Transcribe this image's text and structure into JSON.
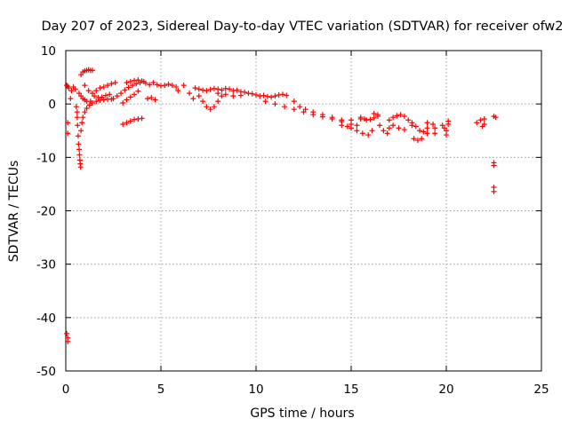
{
  "chart_data": {
    "type": "scatter",
    "title": "Day 207 of 2023, Sidereal Day-to-day VTEC variation (SDTVAR) for receiver ofw2",
    "xlabel": "GPS time / hours",
    "ylabel": "SDTVAR / TECUs",
    "xlim": [
      0,
      25
    ],
    "ylim": [
      -50,
      10
    ],
    "xticks": [
      0,
      5,
      10,
      15,
      20,
      25
    ],
    "yticks": [
      -50,
      -40,
      -30,
      -20,
      -10,
      0,
      10
    ],
    "grid": true,
    "marker": "+",
    "colors": {
      "series": "#ff0000",
      "grid": "#a0a0a0",
      "axes": "#000000"
    },
    "series": [
      {
        "name": "SDTVAR",
        "points": [
          [
            0.05,
            3.5
          ],
          [
            0.1,
            3.3
          ],
          [
            0.15,
            3.0
          ],
          [
            0.1,
            -3.5
          ],
          [
            0.1,
            -5.5
          ],
          [
            0.05,
            -43.0
          ],
          [
            0.1,
            -43.8
          ],
          [
            0.1,
            -44.5
          ],
          [
            0.25,
            1.0
          ],
          [
            0.3,
            2.5
          ],
          [
            0.4,
            3.2
          ],
          [
            0.5,
            2.8
          ],
          [
            0.55,
            -0.5
          ],
          [
            0.6,
            -1.5
          ],
          [
            0.6,
            -2.5
          ],
          [
            0.62,
            -4.0
          ],
          [
            0.65,
            -6.0
          ],
          [
            0.67,
            -7.5
          ],
          [
            0.7,
            -8.5
          ],
          [
            0.72,
            -9.5
          ],
          [
            0.74,
            -10.5
          ],
          [
            0.76,
            -11.2
          ],
          [
            0.78,
            -11.8
          ],
          [
            0.8,
            -5.0
          ],
          [
            0.85,
            -3.5
          ],
          [
            0.9,
            -2.5
          ],
          [
            1.0,
            -1.5
          ],
          [
            1.1,
            -0.8
          ],
          [
            1.25,
            -0.2
          ],
          [
            1.4,
            0.2
          ],
          [
            1.6,
            0.5
          ],
          [
            1.8,
            0.7
          ],
          [
            2.0,
            0.8
          ],
          [
            2.2,
            0.9
          ],
          [
            2.4,
            0.9
          ],
          [
            0.7,
            2.0
          ],
          [
            0.8,
            1.5
          ],
          [
            0.9,
            1.0
          ],
          [
            1.0,
            0.8
          ],
          [
            1.1,
            0.5
          ],
          [
            1.3,
            0.5
          ],
          [
            0.8,
            5.5
          ],
          [
            0.9,
            6.0
          ],
          [
            1.0,
            6.2
          ],
          [
            1.1,
            6.3
          ],
          [
            1.2,
            6.4
          ],
          [
            1.3,
            6.3
          ],
          [
            1.4,
            6.3
          ],
          [
            1.0,
            3.5
          ],
          [
            1.2,
            2.5
          ],
          [
            1.4,
            2.0
          ],
          [
            1.6,
            2.5
          ],
          [
            1.8,
            3.0
          ],
          [
            2.0,
            3.2
          ],
          [
            2.2,
            3.5
          ],
          [
            2.4,
            3.8
          ],
          [
            2.6,
            4.0
          ],
          [
            1.5,
            1.5
          ],
          [
            1.7,
            1.2
          ],
          [
            1.9,
            1.3
          ],
          [
            2.1,
            1.6
          ],
          [
            2.3,
            1.8
          ],
          [
            2.5,
            1.0
          ],
          [
            2.7,
            1.5
          ],
          [
            2.9,
            2.0
          ],
          [
            3.1,
            2.6
          ],
          [
            3.3,
            3.1
          ],
          [
            3.5,
            3.5
          ],
          [
            3.7,
            3.8
          ],
          [
            3.9,
            4.0
          ],
          [
            4.1,
            4.2
          ],
          [
            3.0,
            0.2
          ],
          [
            3.2,
            0.8
          ],
          [
            3.4,
            1.3
          ],
          [
            3.6,
            1.8
          ],
          [
            3.8,
            2.4
          ],
          [
            3.2,
            4.0
          ],
          [
            3.4,
            4.2
          ],
          [
            3.6,
            4.4
          ],
          [
            3.8,
            4.5
          ],
          [
            4.0,
            4.3
          ],
          [
            4.2,
            3.9
          ],
          [
            4.4,
            3.6
          ],
          [
            3.0,
            -3.8
          ],
          [
            3.2,
            -3.5
          ],
          [
            3.4,
            -3.2
          ],
          [
            3.6,
            -2.9
          ],
          [
            3.8,
            -2.8
          ],
          [
            4.0,
            -2.7
          ],
          [
            4.3,
            1.0
          ],
          [
            4.5,
            1.2
          ],
          [
            4.7,
            0.8
          ],
          [
            4.6,
            4.0
          ],
          [
            4.8,
            3.6
          ],
          [
            5.0,
            3.4
          ],
          [
            5.2,
            3.5
          ],
          [
            5.4,
            3.7
          ],
          [
            5.6,
            3.5
          ],
          [
            5.8,
            3.2
          ],
          [
            5.9,
            2.5
          ],
          [
            6.2,
            3.5
          ],
          [
            6.5,
            2.0
          ],
          [
            6.7,
            1.0
          ],
          [
            6.8,
            3.0
          ],
          [
            7.0,
            2.8
          ],
          [
            7.2,
            2.6
          ],
          [
            7.4,
            2.5
          ],
          [
            7.6,
            2.7
          ],
          [
            7.8,
            2.9
          ],
          [
            8.0,
            2.8
          ],
          [
            8.2,
            2.6
          ],
          [
            8.4,
            2.9
          ],
          [
            8.6,
            2.8
          ],
          [
            8.8,
            2.5
          ],
          [
            9.0,
            2.6
          ],
          [
            9.2,
            2.3
          ],
          [
            9.4,
            2.2
          ],
          [
            9.6,
            2.0
          ],
          [
            9.8,
            1.9
          ],
          [
            10.0,
            1.7
          ],
          [
            10.2,
            1.5
          ],
          [
            10.4,
            1.6
          ],
          [
            10.6,
            1.4
          ],
          [
            10.8,
            1.3
          ],
          [
            11.0,
            1.5
          ],
          [
            11.2,
            1.7
          ],
          [
            11.4,
            1.8
          ],
          [
            11.6,
            1.6
          ],
          [
            7.0,
            1.5
          ],
          [
            7.2,
            0.5
          ],
          [
            7.4,
            -0.5
          ],
          [
            7.6,
            -1.0
          ],
          [
            7.8,
            -0.5
          ],
          [
            8.0,
            0.5
          ],
          [
            8.2,
            1.5
          ],
          [
            8.0,
            2.0
          ],
          [
            8.4,
            1.8
          ],
          [
            8.8,
            1.5
          ],
          [
            9.2,
            1.6
          ],
          [
            10.5,
            0.5
          ],
          [
            11.0,
            0.0
          ],
          [
            11.5,
            -0.5
          ],
          [
            12.0,
            -1.0
          ],
          [
            12.5,
            -1.5
          ],
          [
            13.0,
            -2.0
          ],
          [
            13.5,
            -2.4
          ],
          [
            14.0,
            -2.8
          ],
          [
            14.5,
            -3.0
          ],
          [
            15.0,
            -3.0
          ],
          [
            15.5,
            -2.8
          ],
          [
            15.8,
            -3.0
          ],
          [
            12.0,
            0.5
          ],
          [
            12.3,
            -0.5
          ],
          [
            12.6,
            -1.0
          ],
          [
            13.0,
            -1.5
          ],
          [
            13.5,
            -2.0
          ],
          [
            14.0,
            -2.5
          ],
          [
            14.5,
            -3.3
          ],
          [
            15.0,
            -3.8
          ],
          [
            15.3,
            -4.0
          ],
          [
            14.5,
            -4.0
          ],
          [
            14.8,
            -4.2
          ],
          [
            15.0,
            -4.5
          ],
          [
            15.3,
            -5.0
          ],
          [
            15.6,
            -5.5
          ],
          [
            15.9,
            -5.8
          ],
          [
            16.1,
            -5.0
          ],
          [
            15.5,
            -2.5
          ],
          [
            15.7,
            -2.8
          ],
          [
            16.0,
            -2.9
          ],
          [
            16.2,
            -2.6
          ],
          [
            16.4,
            -2.3
          ],
          [
            16.5,
            -4.0
          ],
          [
            16.7,
            -5.0
          ],
          [
            16.9,
            -5.5
          ],
          [
            17.0,
            -4.5
          ],
          [
            17.0,
            -3.0
          ],
          [
            17.2,
            -2.5
          ],
          [
            17.4,
            -2.2
          ],
          [
            17.6,
            -2.0
          ],
          [
            17.8,
            -2.3
          ],
          [
            18.0,
            -3.0
          ],
          [
            18.2,
            -3.5
          ],
          [
            16.2,
            -1.8
          ],
          [
            16.4,
            -2.0
          ],
          [
            17.2,
            -4.0
          ],
          [
            17.5,
            -4.5
          ],
          [
            17.8,
            -4.8
          ],
          [
            18.3,
            -6.5
          ],
          [
            18.5,
            -6.8
          ],
          [
            18.7,
            -6.5
          ],
          [
            18.2,
            -4.0
          ],
          [
            18.4,
            -4.2
          ],
          [
            18.6,
            -5.0
          ],
          [
            18.8,
            -5.2
          ],
          [
            19.0,
            -3.5
          ],
          [
            19.0,
            -4.5
          ],
          [
            19.0,
            -5.5
          ],
          [
            19.3,
            -3.8
          ],
          [
            19.4,
            -4.5
          ],
          [
            19.4,
            -5.5
          ],
          [
            19.8,
            -4.0
          ],
          [
            19.9,
            -4.5
          ],
          [
            20.0,
            -5.0
          ],
          [
            20.0,
            -5.8
          ],
          [
            20.1,
            -3.2
          ],
          [
            20.1,
            -3.8
          ],
          [
            21.6,
            -3.5
          ],
          [
            21.8,
            -3.0
          ],
          [
            21.9,
            -4.2
          ],
          [
            22.0,
            -2.8
          ],
          [
            22.0,
            -3.8
          ],
          [
            22.5,
            -2.3
          ],
          [
            22.6,
            -2.5
          ],
          [
            22.5,
            -11.0
          ],
          [
            22.5,
            -11.5
          ],
          [
            22.5,
            -15.6
          ],
          [
            22.5,
            -16.4
          ]
        ]
      }
    ]
  }
}
